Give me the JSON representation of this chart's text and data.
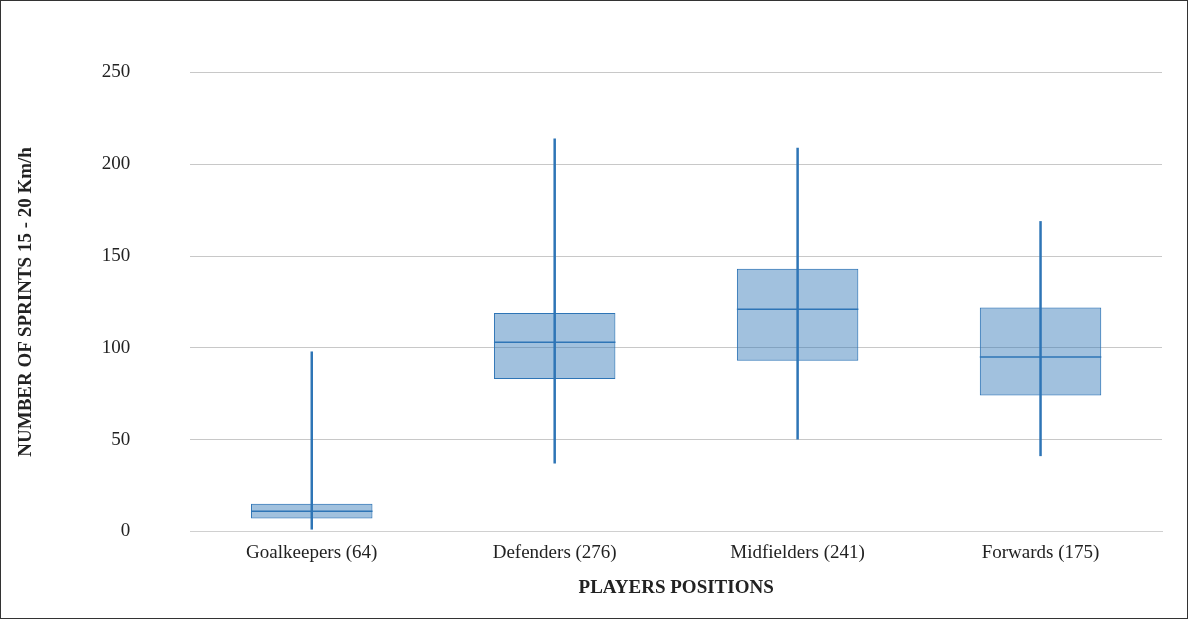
{
  "chart_data": {
    "type": "box",
    "xlabel": "PLAYERS POSITIONS",
    "ylabel": "NUMBER OF SPRINTS 15 - 20 Km/h",
    "categories": [
      "Goalkeepers (64)",
      "Defenders (276)",
      "Midfielders (241)",
      "Forwards (175)"
    ],
    "series": [
      {
        "color": "#2e75b6",
        "boxes": [
          {
            "low": 1,
            "q1": 7,
            "median": 11,
            "q3": 15,
            "high": 98
          },
          {
            "low": 37,
            "q1": 83,
            "median": 103,
            "q3": 119,
            "high": 214
          },
          {
            "low": 50,
            "q1": 93,
            "median": 121,
            "q3": 143,
            "high": 209
          },
          {
            "low": 41,
            "q1": 74,
            "median": 95,
            "q3": 122,
            "high": 169
          }
        ]
      }
    ],
    "ylim": [
      0,
      250
    ],
    "yticks": [
      0,
      50,
      100,
      150,
      200,
      250
    ],
    "grid": "y",
    "legend": false
  }
}
